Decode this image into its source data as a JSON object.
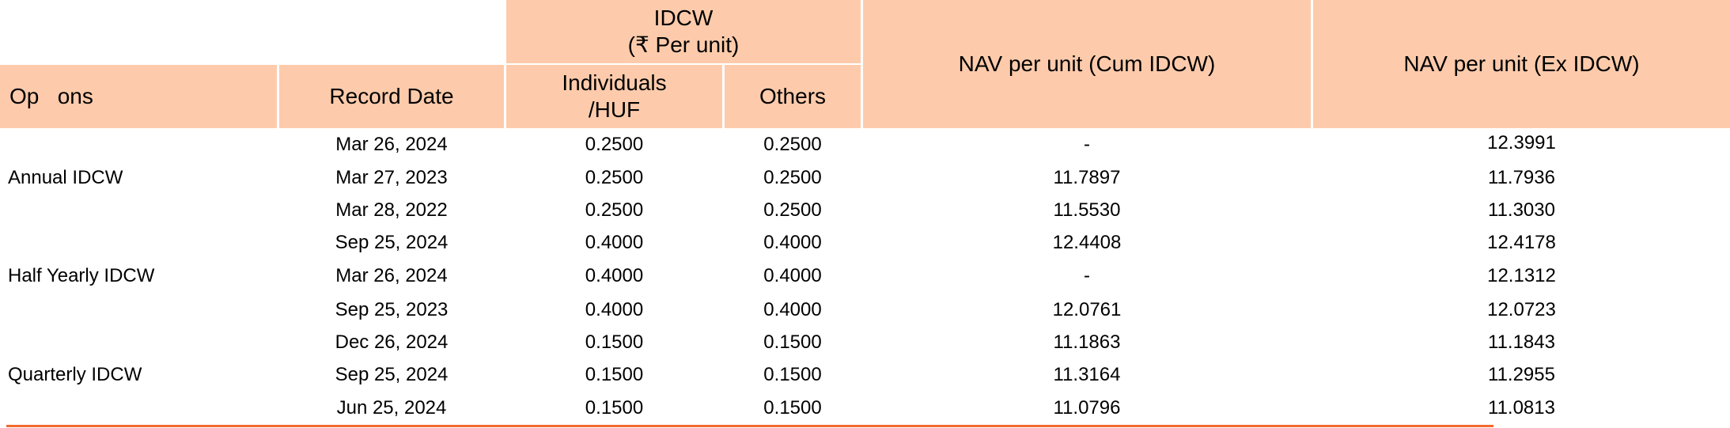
{
  "header": {
    "idcw_title": "IDCW",
    "idcw_unit": "(₹ Per unit)",
    "options": "Op   ons",
    "record_date": "Record Date",
    "individuals_line1": "Individuals",
    "individuals_line2": "/HUF",
    "others": "Others",
    "nav_cum": "NAV per unit (Cum IDCW)",
    "nav_ex": "NAV per unit (Ex IDCW)"
  },
  "groups": [
    {
      "option": "Annual IDCW",
      "rows": [
        {
          "record_date": "Mar 26, 2024",
          "individuals": "0.2500",
          "others": "0.2500",
          "nav_cum": "-",
          "nav_ex": "12.3991"
        },
        {
          "record_date": "Mar 27, 2023",
          "individuals": "0.2500",
          "others": "0.2500",
          "nav_cum": "11.7897",
          "nav_ex": "11.7936"
        },
        {
          "record_date": "Mar 28, 2022",
          "individuals": "0.2500",
          "others": "0.2500",
          "nav_cum": "11.5530",
          "nav_ex": "11.3030"
        }
      ]
    },
    {
      "option": "Half Yearly IDCW",
      "rows": [
        {
          "record_date": "Sep 25, 2024",
          "individuals": "0.4000",
          "others": "0.4000",
          "nav_cum": "12.4408",
          "nav_ex": "12.4178"
        },
        {
          "record_date": "Mar 26, 2024",
          "individuals": "0.4000",
          "others": "0.4000",
          "nav_cum": "-",
          "nav_ex": "12.1312"
        },
        {
          "record_date": "Sep 25, 2023",
          "individuals": "0.4000",
          "others": "0.4000",
          "nav_cum": "12.0761",
          "nav_ex": "12.0723"
        }
      ]
    },
    {
      "option": "Quarterly IDCW",
      "rows": [
        {
          "record_date": "Dec 26, 2024",
          "individuals": "0.1500",
          "others": "0.1500",
          "nav_cum": "11.1863",
          "nav_ex": "11.1843"
        },
        {
          "record_date": "Sep 25, 2024",
          "individuals": "0.1500",
          "others": "0.1500",
          "nav_cum": "11.3164",
          "nav_ex": "11.2955"
        },
        {
          "record_date": "Jun 25, 2024",
          "individuals": "0.1500",
          "others": "0.1500",
          "nav_cum": "11.0796",
          "nav_ex": "11.0813"
        }
      ]
    }
  ]
}
